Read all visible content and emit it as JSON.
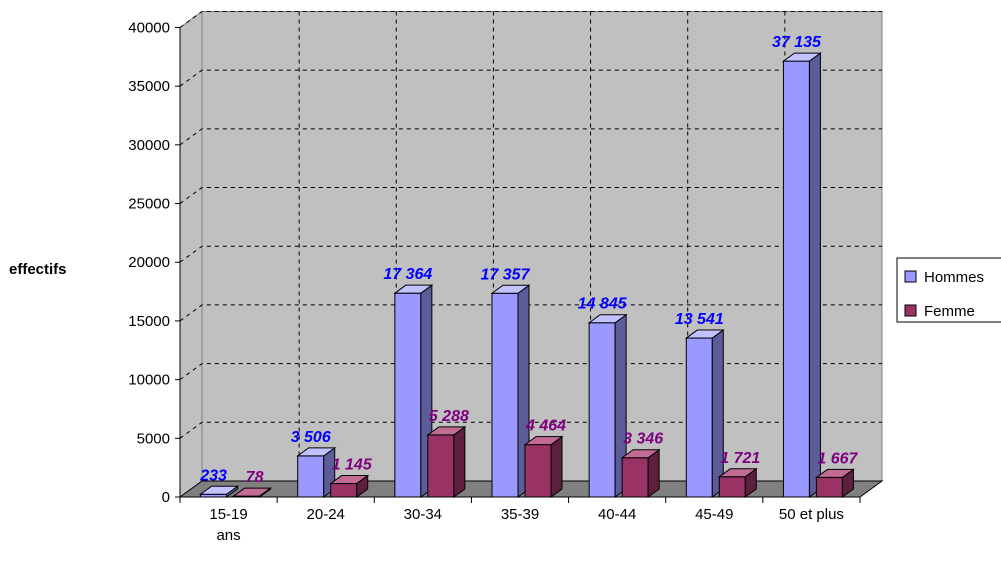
{
  "chart_data": {
    "type": "bar",
    "categories": [
      "15-19 ans",
      "20-24",
      "30-34",
      "35-39",
      "40-44",
      "45-49",
      "50 et plus"
    ],
    "series": [
      {
        "name": "Hommes",
        "values": [
          233,
          3506,
          17364,
          17357,
          14845,
          13541,
          37135
        ],
        "labels": [
          "233",
          "3 506",
          "17 364",
          "17 357",
          "14 845",
          "13 541",
          "37 135"
        ]
      },
      {
        "name": "Femme",
        "values": [
          78,
          1145,
          5288,
          4464,
          3346,
          1721,
          1667
        ],
        "labels": [
          "78",
          "1 145",
          "5 288",
          "4 464",
          "3 346",
          "1 721",
          "1 667"
        ]
      }
    ],
    "ylabel": "effectifs",
    "xlabel": "",
    "ylim": [
      0,
      40000
    ],
    "yticks": [
      "0",
      "5000",
      "10000",
      "15000",
      "20000",
      "25000",
      "30000",
      "35000",
      "40000"
    ],
    "grid": true,
    "legend_position": "right",
    "colors": {
      "hommes": "#9999ff",
      "hommes_side": "#5c5c99",
      "hommes_top": "#c2c2ff",
      "hommes_label": "#0000ff",
      "femme": "#993366",
      "femme_side": "#5c1f3d",
      "femme_top": "#c26b94",
      "femme_label": "#800080",
      "wall": "#c0c0c0",
      "floor": "#808080"
    }
  }
}
